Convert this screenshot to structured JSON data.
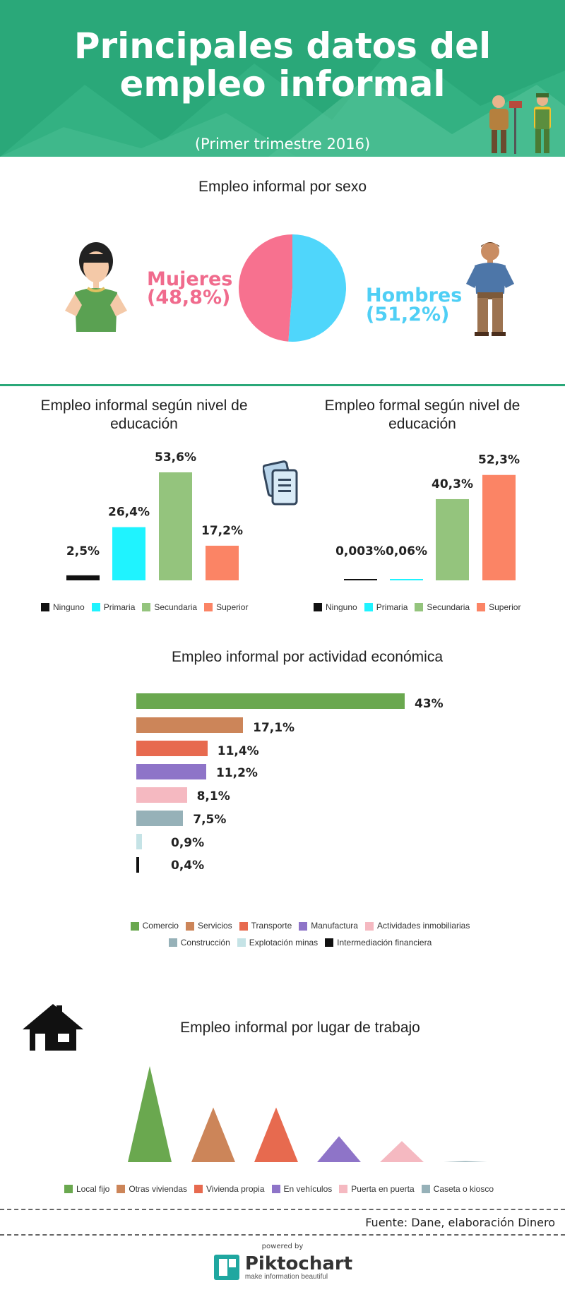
{
  "header": {
    "title": "Principales datos del empleo informal",
    "subtitle": "(Primer trimestre 2016)"
  },
  "colors": {
    "header_green": "#2aa879",
    "mujeres": "#f06b8d",
    "hombres": "#4fcff5",
    "ninguno": "#111111",
    "primaria": "#1ff3ff",
    "secundaria": "#94c47d",
    "superior": "#fb8465"
  },
  "icons": [
    "woman-icon",
    "man-icon",
    "workers-icon",
    "documents-icon",
    "house-icon",
    "piktochart-logo-icon"
  ],
  "sexo": {
    "title": "Empleo informal por sexo",
    "mujeres_label": "Mujeres",
    "mujeres_value": "(48,8%)",
    "hombres_label": "Hombres",
    "hombres_value": "(51,2%)"
  },
  "chart_data": [
    {
      "type": "pie",
      "title": "Empleo informal por sexo",
      "labels": [
        "Mujeres",
        "Hombres"
      ],
      "values": [
        48.8,
        51.2
      ],
      "colors": [
        "#f7718f",
        "#4fd6fb"
      ]
    },
    {
      "type": "bar",
      "title": "Empleo informal según nivel de educación",
      "categories": [
        "Ninguno",
        "Primaria",
        "Secundaria",
        "Superior"
      ],
      "values": [
        2.5,
        26.4,
        53.6,
        17.2
      ],
      "labels": [
        "2,5%",
        "26,4%",
        "53,6%",
        "17,2%"
      ],
      "colors": [
        "#111111",
        "#1ff3ff",
        "#94c47d",
        "#fb8465"
      ],
      "legend": "bottom"
    },
    {
      "type": "bar",
      "title": "Empleo formal según nivel de educación",
      "categories": [
        "Ninguno",
        "Primaria",
        "Secundaria",
        "Superior"
      ],
      "values": [
        0.003,
        0.06,
        40.3,
        52.3
      ],
      "labels": [
        "0,003%",
        "0,06%",
        "40,3%",
        "52,3%"
      ],
      "colors": [
        "#111111",
        "#1ff3ff",
        "#94c47d",
        "#fb8465"
      ],
      "legend": "bottom"
    },
    {
      "type": "bar",
      "orientation": "horizontal",
      "title": "Empleo informal por actividad económica",
      "categories": [
        "Comercio",
        "Servicios",
        "Transporte",
        "Manufactura",
        "Actividades inmobiliarias",
        "Construcción",
        "Explotación minas",
        "Intermediación financiera"
      ],
      "values": [
        43,
        17.1,
        11.4,
        11.2,
        8.1,
        7.5,
        0.9,
        0.4
      ],
      "labels": [
        "43%",
        "17,1%",
        "11,4%",
        "11,2%",
        "8,1%",
        "7,5%",
        "0,9%",
        "0,4%"
      ],
      "colors": [
        "#6aa84f",
        "#cc8559",
        "#e76a4f",
        "#8e74c8",
        "#f5b9c1",
        "#96b1b8",
        "#c5e3e6",
        "#111111"
      ],
      "legend": "bottom"
    },
    {
      "type": "bar",
      "shape": "triangle",
      "title": "Empleo informal por lugar de trabajo",
      "categories": [
        "Local fijo",
        "Otras viviendas",
        "Vivienda propia",
        "En vehículos",
        "Puerta en puerta",
        "Caseta o kiosco"
      ],
      "values": [
        100,
        57,
        57,
        27,
        22,
        1
      ],
      "colors": [
        "#6aa84f",
        "#cc8559",
        "#e76a4f",
        "#8e74c8",
        "#f5b9c1",
        "#96b1b8"
      ],
      "legend": "bottom"
    }
  ],
  "footer": {
    "source": "Fuente: Dane, elaboración Dinero",
    "powered": "powered by",
    "brand": "Piktochart",
    "tagline": "make information beautiful"
  }
}
